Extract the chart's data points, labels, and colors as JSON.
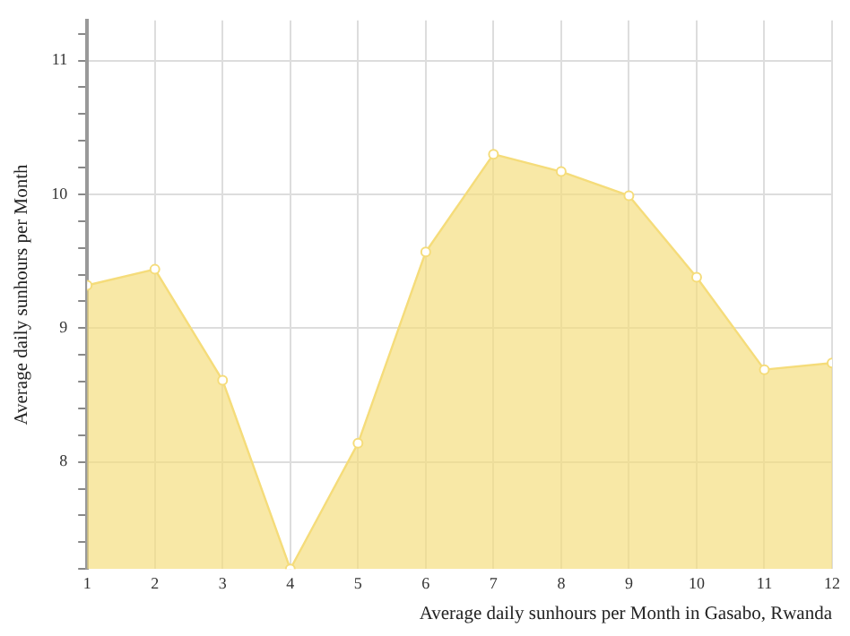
{
  "chart_data": {
    "type": "area",
    "xlabel": "Average daily sunhours per Month in Gasabo, Rwanda",
    "ylabel": "Average daily sunhours per Month",
    "x": [
      1,
      2,
      3,
      4,
      5,
      6,
      7,
      8,
      9,
      10,
      11,
      12
    ],
    "series": [
      {
        "color": "#f5dc7a",
        "values": [
          9.32,
          9.44,
          8.61,
          7.2,
          8.14,
          9.57,
          10.3,
          10.17,
          9.99,
          9.38,
          8.69,
          8.74
        ]
      }
    ],
    "xlim": [
      1,
      12
    ],
    "xticks": [
      1,
      2,
      3,
      4,
      5,
      6,
      7,
      8,
      9,
      10,
      11,
      12
    ],
    "ylim": [
      7.2,
      11.3
    ],
    "yticks": [
      {
        "value": 7.2,
        "label": null
      },
      {
        "value": 7.4,
        "label": null
      },
      {
        "value": 7.6,
        "label": null
      },
      {
        "value": 7.8,
        "label": null
      },
      8,
      {
        "value": 8.2,
        "label": null
      },
      {
        "value": 8.4,
        "label": null
      },
      {
        "value": 8.6,
        "label": null
      },
      {
        "value": 8.8,
        "label": null
      },
      9,
      {
        "value": 9.2,
        "label": null
      },
      {
        "value": 9.4,
        "label": null
      },
      {
        "value": 9.6,
        "label": null
      },
      {
        "value": 9.8,
        "label": null
      },
      10,
      {
        "value": 10.2,
        "label": null
      },
      {
        "value": 10.4,
        "label": null
      },
      {
        "value": 10.6,
        "label": null
      },
      {
        "value": 10.8,
        "label": null
      },
      11,
      {
        "value": 11.2,
        "label": null
      }
    ],
    "grid": true,
    "marker": "circle",
    "legend": false
  }
}
